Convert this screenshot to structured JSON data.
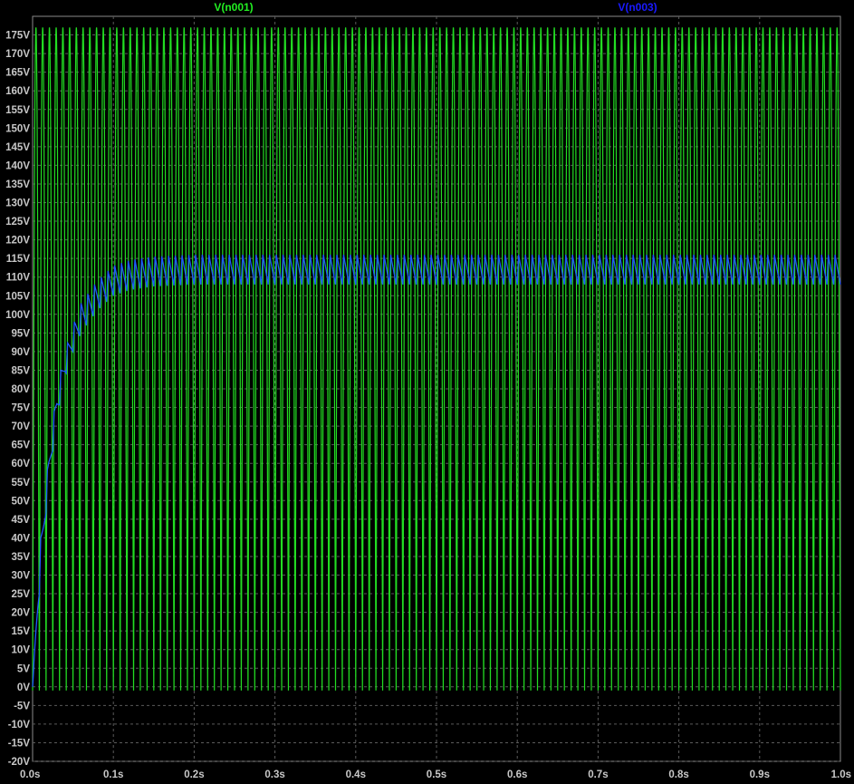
{
  "chart_data": {
    "type": "line",
    "title": "",
    "xlabel": "",
    "ylabel": "",
    "xlim": [
      0.0,
      1.0
    ],
    "ylim": [
      -20,
      180
    ],
    "x_ticks": [
      "0.0s",
      "0.1s",
      "0.2s",
      "0.3s",
      "0.4s",
      "0.5s",
      "0.6s",
      "0.7s",
      "0.8s",
      "0.9s",
      "1.0s"
    ],
    "y_ticks": [
      "175V",
      "170V",
      "165V",
      "160V",
      "155V",
      "150V",
      "145V",
      "140V",
      "135V",
      "130V",
      "125V",
      "120V",
      "115V",
      "110V",
      "105V",
      "100V",
      "95V",
      "90V",
      "85V",
      "80V",
      "75V",
      "70V",
      "65V",
      "60V",
      "55V",
      "50V",
      "45V",
      "40V",
      "35V",
      "30V",
      "25V",
      "20V",
      "15V",
      "10V",
      "5V",
      "0V",
      "-5V",
      "-10V",
      "-15V",
      "-20V"
    ],
    "grid": true,
    "background": "#000000",
    "grid_color": "#5a5a5a",
    "series": [
      {
        "name": "V(n001)",
        "color": "#22dd22",
        "label_color": "#22ee22",
        "kind": "full-wave rectified sine",
        "frequency_hz": 120,
        "min": -1,
        "max": 177,
        "x": [
          0.0,
          1.0
        ]
      },
      {
        "name": "V(n003)",
        "color": "#1e5aff",
        "label_color": "#1a1aff",
        "kind": "charging ripple",
        "ripple_frequency_hz": 120,
        "envelope_x": [
          0.0,
          0.01,
          0.02,
          0.03,
          0.04,
          0.05,
          0.06,
          0.08,
          0.1,
          0.12,
          0.15,
          0.2,
          1.0
        ],
        "envelope_hi": [
          0,
          40,
          62,
          80,
          90,
          97,
          103,
          109,
          113,
          114.5,
          115.5,
          116,
          116
        ],
        "envelope_lo": [
          0,
          30,
          55,
          72,
          83,
          90,
          95,
          101,
          105,
          106.5,
          107.5,
          108,
          108
        ]
      }
    ]
  }
}
